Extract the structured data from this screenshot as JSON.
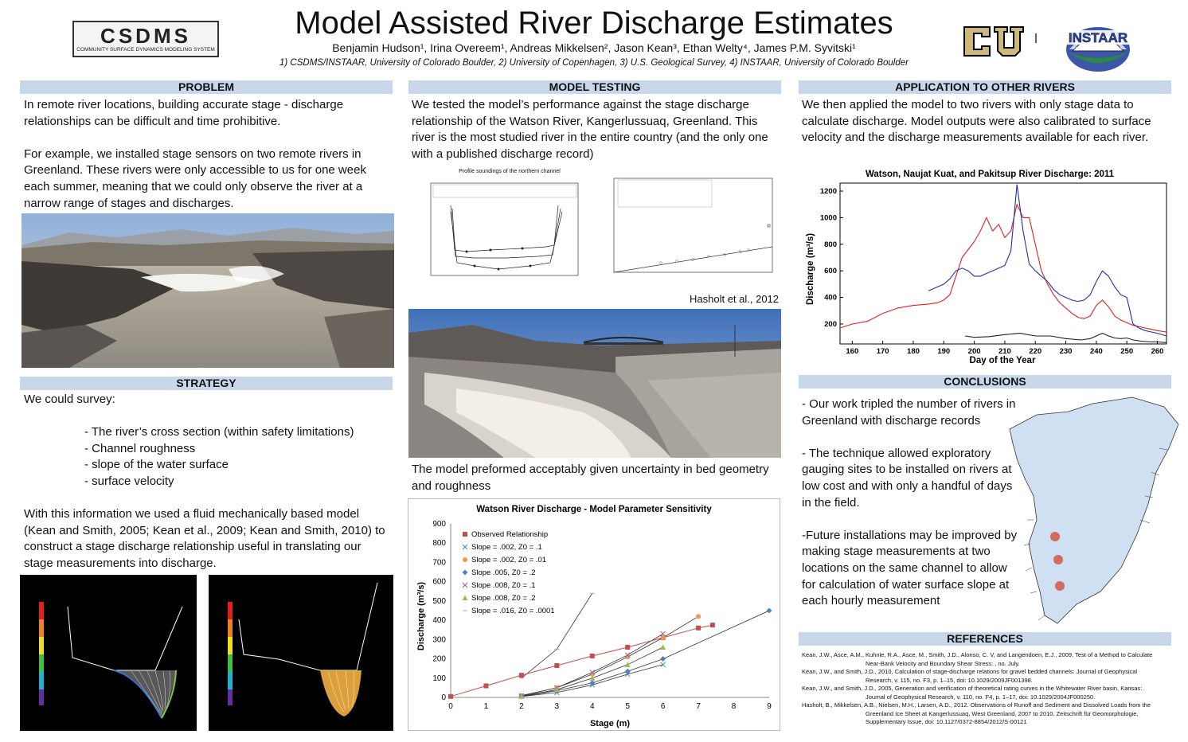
{
  "title": "Model Assisted River Discharge Estimates",
  "authors": "Benjamin Hudson¹, Irina Overeem¹, Andreas Mikkelsen², Jason Kean³, Ethan Welty⁴, James P.M. Syvitski¹",
  "affiliations": "1) CSDMS/INSTAAR, University of Colorado Boulder, 2) University of Copenhagen, 3) U.S. Geological Survey, 4) INSTAAR, University of Colorado Boulder",
  "logos": {
    "csdms": "CSDMS",
    "csdms_sub": "COMMUNITY SURFACE DYNAMICS MODELING SYSTEM",
    "instaar": "INSTAAR",
    "instaar_sub": "University of Colorado Boulder"
  },
  "problem": {
    "header": "PROBLEM",
    "p1": "In remote river locations, building accurate stage - discharge relationships can be difficult and time prohibitive.",
    "p2": "For example, we installed stage sensors on two remote rivers in Greenland. These rivers were only accessible to us for one week each summer, meaning that we could only observe the river at a narrow range of stages and discharges."
  },
  "strategy": {
    "header": "STRATEGY",
    "intro": "We could survey:",
    "items": [
      "- The river’s cross section (within safety limitations)",
      "- Channel roughness",
      "- slope of the water surface",
      "- surface velocity"
    ],
    "p2": "With this information we used a fluid mechanically based model (Kean and Smith, 2005; Kean et al., 2009; Kean and Smith, 2010) to construct a stage discharge relationship useful in translating our stage measurements into discharge."
  },
  "model_testing": {
    "header": "MODEL TESTING",
    "p1": "We tested the model’s performance against the stage discharge relationship of the Watson River, Kangerlussuaq, Greenland. This river is the most studied river in the entire country (and the only one with a published discharge record)",
    "credit": "Hasholt  et  al., 2012",
    "p2": "The model preformed acceptably given uncertainty  in bed geometry and roughness",
    "profile_title": "Profile soundings of the northern channel"
  },
  "application": {
    "header": "APPLICATION TO OTHER RIVERS",
    "p1": "We then applied the model to two rivers with only stage data to calculate discharge. Model outputs were also calibrated to surface velocity and the discharge measurements available for each river."
  },
  "conclusions": {
    "header": "CONCLUSIONS",
    "p1": "- Our work tripled the number of rivers in Greenland with discharge records",
    "p2": "- The technique allowed exploratory gauging sites to be  installed on rivers at low cost and with only a handful of days in the field.",
    "p3": "-Future installations may be improved by making stage measurements at two locations on the same channel to allow for calculation of water surface slope at each hourly measurement"
  },
  "references": {
    "header": "REFERENCES",
    "items": [
      {
        "a": "Kean, J.W., Asce, A.M., Kuhnle, R.A., Asce, M., Smith, J.D., Alonso, C. V, and Langendoen, E.J., 2009, Test of a Method to Calculate",
        "b": "Near-Bank Velocity and Boundary Shear Stress: , no. July."
      },
      {
        "a": "Kean, J.W., and Smith, J.D., 2010, Calculation of stage-discharge relations for gravel bedded channels: Journal of Geophysical",
        "b": "Research, v. 115, no. F3, p. 1–15, doi: 10.1029/2009JF001398."
      },
      {
        "a": "Kean, J.W., and Smith, J.D., 2005, Generation and verification of theoretical rating curves in the Whitewater River basin, Kansas:",
        "b": "Journal of Geophysical Research, v. 110, no. F4, p. 1–17, doi: 10.1029/2004JF000250."
      },
      {
        "a": "Hasholt, B., Mikkelsen, A.B., Nielsen, M.H., Larsen, A.D., 2012. Observations of Runoff and Sediment and Dissolved Loads from the",
        "b": "Greenland Ice Sheet at Kangerlussuaq, West Greenland, 2007 to 2010. Zeitschrift für Geomorphologie, Supplementary Issue, doi: 10.1127/0372-8854/2012/S-00121"
      }
    ]
  },
  "chart_data": [
    {
      "type": "line",
      "title": "Watson, Naujat Kuat, and Pakitsup River Discharge: 2011",
      "xlabel": "Day of the Year",
      "ylabel": "Discharge (m³/s)",
      "xlim": [
        156,
        263
      ],
      "ylim": [
        50,
        1260
      ],
      "xticks": [
        160,
        170,
        180,
        190,
        200,
        210,
        220,
        230,
        240,
        250,
        260
      ],
      "yticks": [
        200,
        400,
        600,
        800,
        1000,
        1200
      ],
      "series": [
        {
          "color": "#e02020",
          "x": [
            156,
            160,
            165,
            170,
            175,
            180,
            185,
            188,
            190,
            192,
            194,
            196,
            198,
            200,
            202,
            204,
            206,
            208,
            210,
            212,
            214,
            216,
            218,
            220,
            222,
            224,
            226,
            228,
            230,
            232,
            234,
            236,
            238,
            240,
            242,
            244,
            246,
            248,
            250,
            252,
            254,
            256,
            258,
            260,
            263
          ],
          "y": [
            170,
            200,
            220,
            280,
            320,
            340,
            350,
            360,
            380,
            420,
            560,
            700,
            760,
            820,
            900,
            1000,
            900,
            950,
            850,
            900,
            1100,
            1000,
            1000,
            800,
            600,
            500,
            420,
            360,
            320,
            280,
            250,
            240,
            260,
            340,
            380,
            330,
            260,
            230,
            210,
            190,
            180,
            170,
            160,
            150,
            140
          ]
        },
        {
          "color": "#2030a0",
          "x": [
            185,
            188,
            190,
            192,
            194,
            196,
            198,
            200,
            202,
            204,
            206,
            208,
            210,
            212,
            214,
            216,
            218,
            220,
            222,
            224,
            226,
            228,
            230,
            232,
            234,
            236,
            238,
            240,
            242,
            244,
            246,
            248,
            250,
            252,
            254,
            256,
            258,
            260,
            263
          ],
          "y": [
            450,
            480,
            500,
            540,
            600,
            620,
            600,
            560,
            560,
            580,
            600,
            620,
            640,
            750,
            1250,
            900,
            650,
            600,
            560,
            520,
            460,
            420,
            400,
            380,
            370,
            380,
            420,
            520,
            600,
            560,
            480,
            420,
            400,
            200,
            170,
            150,
            140,
            130,
            110
          ]
        },
        {
          "color": "#202020",
          "x": [
            197,
            200,
            205,
            210,
            215,
            220,
            225,
            230,
            235,
            238,
            240,
            242,
            244,
            246,
            248,
            250,
            252,
            255,
            258,
            260,
            263
          ],
          "y": [
            110,
            100,
            105,
            120,
            130,
            110,
            110,
            90,
            80,
            90,
            110,
            130,
            110,
            95,
            90,
            95,
            80,
            70,
            65,
            65,
            60
          ]
        }
      ]
    },
    {
      "type": "scatter",
      "title": "Watson River Discharge - Model Parameter Sensitivity",
      "xlabel": "Stage (m)",
      "ylabel": "Discharge (m³/s)",
      "xlim": [
        0,
        9
      ],
      "ylim": [
        0,
        900
      ],
      "xticks": [
        0,
        1,
        2,
        3,
        4,
        5,
        6,
        7,
        8,
        9
      ],
      "yticks": [
        0,
        100,
        200,
        300,
        400,
        500,
        600,
        700,
        800,
        900
      ],
      "series": [
        {
          "name": "Observed Relationship",
          "color": "#c0504d",
          "marker": "square",
          "x": [
            0,
            1,
            2,
            3,
            4,
            5,
            6,
            7,
            7.4
          ],
          "y": [
            5,
            60,
            115,
            165,
            215,
            260,
            310,
            360,
            375
          ]
        },
        {
          "name": "Slope = .002, Z0 = .1",
          "color": "#4f81bd",
          "marker": "x",
          "x": [
            2,
            3,
            4,
            5,
            6
          ],
          "y": [
            5,
            25,
            65,
            120,
            170
          ]
        },
        {
          "name": "Slope = .002, Z0 = .01",
          "color": "#f79646",
          "marker": "circle",
          "x": [
            2,
            3,
            4,
            5,
            6,
            7
          ],
          "y": [
            10,
            50,
            120,
            210,
            310,
            420
          ]
        },
        {
          "name": "Slope .005, Z0 = .2",
          "color": "#4f81bd",
          "marker": "diamond",
          "x": [
            2,
            3,
            4,
            5,
            6,
            9
          ],
          "y": [
            5,
            35,
            75,
            135,
            200,
            450
          ]
        },
        {
          "name": "Slope .008, Z0 = .1",
          "color": "#8064a2",
          "marker": "x",
          "x": [
            2,
            3,
            4,
            5,
            6
          ],
          "y": [
            8,
            50,
            130,
            220,
            330
          ]
        },
        {
          "name": "Slope .008, Z0 = .2",
          "color": "#9bbb59",
          "marker": "triangle",
          "x": [
            2,
            3,
            4,
            5,
            6
          ],
          "y": [
            6,
            40,
            100,
            170,
            260
          ]
        },
        {
          "name": "Slope = .016, Z0 = .0001",
          "color": "#aaaaaa",
          "marker": "dash",
          "x": [
            2,
            3,
            4
          ],
          "y": [
            100,
            250,
            540
          ]
        }
      ]
    }
  ]
}
